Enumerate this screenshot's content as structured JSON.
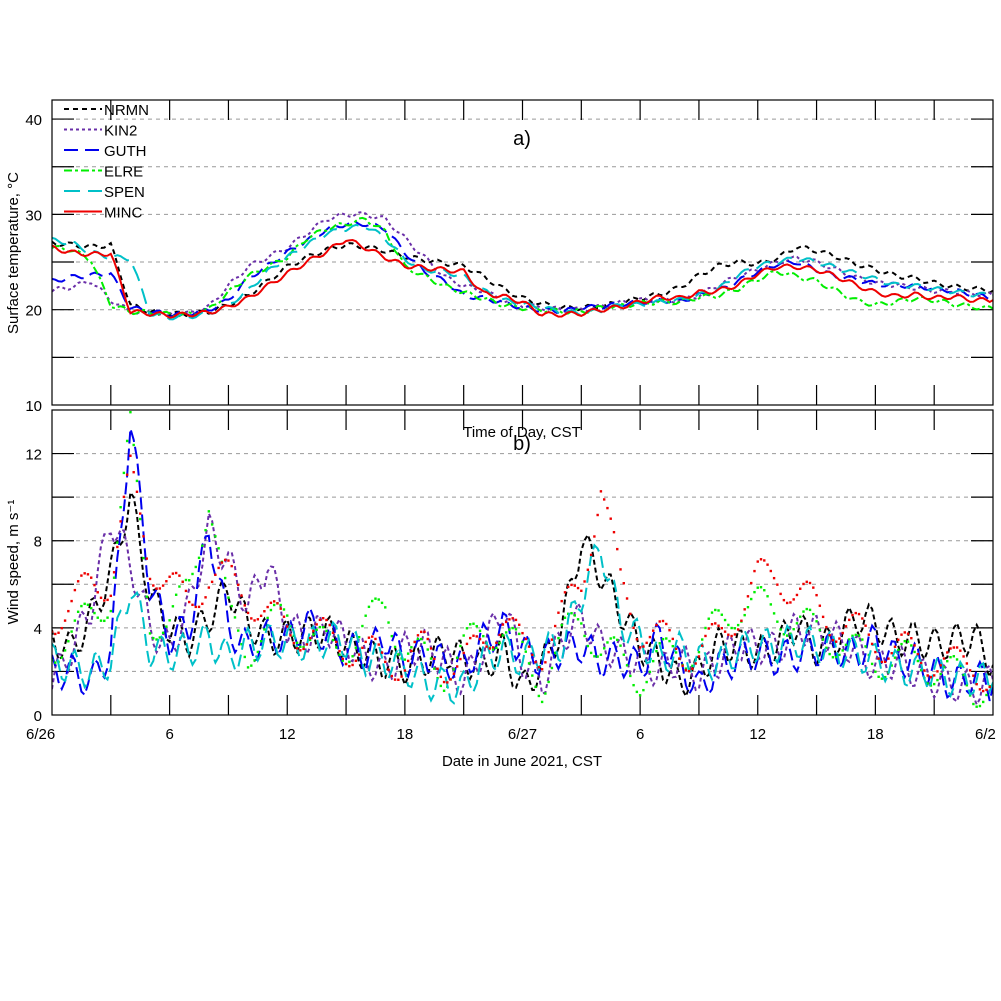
{
  "chart_data": [
    {
      "type": "line",
      "panel_label": "a)",
      "ylabel": "Surface temperature, °C",
      "ylim": [
        10,
        42
      ],
      "yticks": [
        10,
        20,
        30,
        40
      ],
      "ygrid": [
        15,
        20,
        25,
        30,
        35,
        40
      ],
      "xlabel": "Time of Day, CST",
      "xlim_hours": [
        0,
        48
      ],
      "legend": "top-left",
      "x_hours": [
        0,
        1,
        2,
        3,
        4,
        5,
        6,
        7,
        8,
        9,
        10,
        11,
        12,
        13,
        14,
        15,
        16,
        17,
        18,
        19,
        20,
        21,
        22,
        23,
        24,
        25,
        26,
        27,
        28,
        29,
        30,
        31,
        32,
        33,
        34,
        35,
        36,
        37,
        38,
        39,
        40,
        41,
        42,
        43,
        44,
        45,
        46,
        47,
        48
      ],
      "series": [
        {
          "name": "NRMN",
          "color": "#000000",
          "dash": "5,4",
          "values": [
            27,
            26.8,
            26.6,
            26.8,
            20.5,
            19.8,
            19.6,
            19.5,
            19.8,
            20.5,
            21.5,
            23,
            24.5,
            25.5,
            26.3,
            26.8,
            26.6,
            26.2,
            25.6,
            25.2,
            24.9,
            24.6,
            23.5,
            22.2,
            21.2,
            20.6,
            20.2,
            20.2,
            20.4,
            20.7,
            21.2,
            21.6,
            22.3,
            23.6,
            24.6,
            25,
            24.8,
            25.4,
            26.6,
            26.2,
            25.6,
            24.8,
            24.2,
            23.6,
            23.3,
            22.8,
            22.4,
            22.2,
            22
          ]
        },
        {
          "name": "KIN2",
          "color": "#6a2fa8",
          "dash": "3,3",
          "values": [
            22,
            22.4,
            23,
            21,
            19.8,
            19.7,
            19.5,
            19.6,
            20.3,
            22.5,
            24.5,
            25.5,
            26.5,
            28,
            29.5,
            30,
            30,
            29.5,
            27.5,
            25.5,
            23.5,
            22.5,
            22,
            21,
            20.5,
            20.2,
            20,
            20,
            20.3,
            20.7,
            21,
            21,
            21,
            21.5,
            22.6,
            23.5,
            24.2,
            25,
            25.4,
            25,
            24.2,
            23.4,
            22.8,
            22.6,
            22.3,
            22,
            21.9,
            21.7,
            21.5
          ]
        },
        {
          "name": "GUTH",
          "color": "#0000ee",
          "dash": "14,7",
          "values": [
            23,
            23.4,
            23.6,
            23.8,
            20.2,
            19.8,
            19.5,
            19.6,
            20,
            21,
            23.3,
            24.6,
            26,
            27.2,
            28.4,
            29,
            29,
            28.5,
            26,
            24,
            23,
            21.5,
            21.2,
            20.8,
            20.2,
            20,
            19.8,
            20.2,
            20.3,
            20.6,
            20.8,
            21,
            20.9,
            21.5,
            22,
            23,
            24,
            24.8,
            25,
            24.2,
            23.5,
            23.2,
            22.7,
            22.6,
            22.5,
            22.2,
            22,
            21.6,
            21.2
          ]
        },
        {
          "name": "ELRE",
          "color": "#00ee00",
          "dash": "8,3,3,3",
          "values": [
            26.5,
            26.3,
            25.2,
            20.5,
            19.8,
            19.7,
            19.5,
            19.5,
            20,
            21.8,
            23.5,
            24.5,
            25.5,
            27.5,
            28.5,
            29,
            29.5,
            28.2,
            24.5,
            23.5,
            22.5,
            21.8,
            21.2,
            20.5,
            20.2,
            20,
            19.8,
            19.8,
            20.2,
            20.4,
            20.7,
            20.8,
            20.8,
            21.3,
            21.5,
            22.2,
            23.2,
            24,
            23.5,
            23,
            22,
            21,
            20.5,
            20.8,
            21.2,
            21,
            20.6,
            20.3,
            20.1
          ]
        },
        {
          "name": "SPEN",
          "color": "#00c0c8",
          "dash": "16,8",
          "values": [
            27.3,
            27,
            26,
            25.5,
            25.4,
            19.6,
            19.2,
            19.3,
            19.6,
            20.5,
            22,
            24,
            25.5,
            26.8,
            28,
            28.5,
            28.8,
            27.5,
            25.3,
            24.2,
            24,
            23.5,
            22,
            21,
            20.6,
            20.2,
            19.8,
            19.6,
            19.9,
            20.5,
            20.5,
            20.8,
            21,
            21.5,
            22.2,
            23.6,
            24.6,
            25,
            25.4,
            25,
            24.4,
            23.8,
            23.2,
            22.6,
            22.5,
            22.2,
            21.9,
            21.6,
            21.5
          ]
        },
        {
          "name": "MINC",
          "color": "#ee0000",
          "dash": "",
          "values": [
            26.5,
            26,
            25.8,
            25.9,
            19.8,
            19.6,
            19.4,
            19.5,
            19.7,
            20.3,
            21.2,
            22.5,
            23.8,
            25,
            26.1,
            27.4,
            26.5,
            25.5,
            24.6,
            24.4,
            24.2,
            24,
            21.7,
            21.4,
            20.8,
            19.5,
            19.5,
            19.6,
            20,
            20.3,
            20.8,
            21.3,
            21.2,
            21.8,
            22,
            22.6,
            23.8,
            24.5,
            24.5,
            24.2,
            23.5,
            22.6,
            21.8,
            21.4,
            21.6,
            21.2,
            21.4,
            21,
            21
          ]
        }
      ]
    },
    {
      "type": "line",
      "panel_label": "b)",
      "ylabel": "Wind speed, m s⁻¹",
      "ylim": [
        0,
        14
      ],
      "yticks": [
        0,
        4,
        8,
        12
      ],
      "ygrid": [
        2,
        4,
        6,
        8,
        10,
        12
      ],
      "xlabel": "Date in June 2021, CST",
      "xlim_hours": [
        0,
        48
      ],
      "xtick_hours": [
        0,
        6,
        12,
        18,
        24,
        30,
        36,
        42,
        48
      ],
      "xtick_labels": [
        "6/26",
        "6",
        "12",
        "18",
        "6/27",
        "6",
        "12",
        "18",
        "6/2"
      ],
      "x_hours": [
        0,
        1,
        2,
        3,
        4,
        5,
        6,
        7,
        8,
        9,
        10,
        11,
        12,
        13,
        14,
        15,
        16,
        17,
        18,
        19,
        20,
        21,
        22,
        23,
        24,
        25,
        26,
        27,
        28,
        29,
        30,
        31,
        32,
        33,
        34,
        35,
        36,
        37,
        38,
        39,
        40,
        41,
        42,
        43,
        44,
        45,
        46,
        47,
        48
      ],
      "series": [
        {
          "name": "NRMN",
          "color": "#000000",
          "style": "dash",
          "values": [
            3.5,
            3,
            4.5,
            6.5,
            10,
            5.5,
            4,
            3.5,
            4.5,
            5.8,
            4.2,
            3.5,
            3.6,
            3.8,
            3.8,
            3.2,
            2.8,
            2.4,
            2.2,
            2.5,
            3,
            2.6,
            2.2,
            3,
            1.2,
            2.3,
            4,
            8,
            6.5,
            4.8,
            3.2,
            2.5,
            1.5,
            2,
            3.2,
            3.2,
            2.8,
            3.2,
            4.2,
            3,
            3.5,
            4.5,
            4.2,
            3.5,
            3.5,
            3.2,
            3.4,
            3.6,
            2.3
          ]
        },
        {
          "name": "KIN2",
          "color": "#6a2fa8",
          "style": "dot",
          "values": [
            1.5,
            3,
            5,
            9,
            7,
            4,
            3,
            5,
            8.5,
            7,
            5,
            7,
            4,
            3.6,
            4,
            3.4,
            2.6,
            2,
            3,
            3.2,
            2.5,
            1.5,
            3,
            5,
            2.5,
            1.5,
            3.5,
            4.5,
            3.2,
            2.8,
            2.5,
            2,
            2.6,
            1.8,
            2.5,
            3.2,
            3.2,
            3,
            4,
            3.8,
            3.5,
            3,
            2.2,
            2.5,
            2,
            1.6,
            1.4,
            1.2,
            1.6
          ]
        },
        {
          "name": "GUTH",
          "color": "#0000ee",
          "style": "longdash",
          "values": [
            2,
            2,
            1.5,
            3,
            13.5,
            6,
            3.5,
            4,
            8.5,
            4,
            3,
            3.6,
            3.5,
            4.2,
            3.6,
            3,
            2.8,
            3.6,
            2.5,
            2.8,
            2.4,
            2.2,
            3.4,
            4,
            3,
            2.5,
            3,
            3.2,
            2.5,
            2.6,
            2.2,
            3.6,
            2.3,
            1.2,
            2.2,
            2.6,
            2.8,
            2.6,
            2.8,
            3,
            3,
            2.8,
            3.4,
            2.6,
            2.5,
            2,
            1.4,
            1.8,
            1.3
          ]
        },
        {
          "name": "ELRE",
          "color": "#00ee00",
          "style": "points",
          "values": [
            3.2,
            3.6,
            4.6,
            5.5,
            13,
            4.5,
            4,
            6,
            10,
            4.5,
            3,
            4,
            4.5,
            3.8,
            3,
            3.2,
            4,
            5,
            3,
            2.5,
            2,
            3,
            3.8,
            4,
            2.6,
            1.5,
            3.4,
            4.5,
            3,
            2.5,
            1.8,
            2.5,
            3,
            3,
            4.2,
            5,
            5,
            4.8,
            4.2,
            3.8,
            3.5,
            2.8,
            2.6,
            2.5,
            2.5,
            2.2,
            1.8,
            1.2,
            1.5
          ]
        },
        {
          "name": "SPEN",
          "color": "#00c0c8",
          "style": "longdash",
          "values": [
            2.5,
            2.2,
            2,
            2.5,
            6,
            3,
            2.8,
            3,
            3.5,
            2.6,
            3.2,
            3.4,
            3.4,
            3.2,
            3.5,
            3.4,
            2.6,
            2.5,
            2.2,
            1.5,
            1.4,
            1.2,
            2.5,
            3,
            2.5,
            3,
            3.2,
            5.5,
            7.8,
            4.2,
            3.5,
            2.5,
            3,
            2.5,
            2.4,
            3,
            3.2,
            3.2,
            3.4,
            3.2,
            3,
            2.8,
            2.5,
            2.2,
            2,
            2,
            1.6,
            1.7,
            1.5
          ]
        },
        {
          "name": "MINC",
          "color": "#ee0000",
          "style": "points",
          "values": [
            4.5,
            5,
            6,
            6.2,
            11,
            7,
            6,
            5,
            6.5,
            6.2,
            5.5,
            4.5,
            4,
            3.8,
            3.5,
            3.2,
            2.8,
            2.5,
            2.5,
            3,
            2.4,
            2.2,
            3.5,
            4.5,
            3,
            3,
            4.5,
            6,
            10.5,
            6,
            4,
            3.5,
            3,
            2.8,
            3.5,
            4.8,
            6.2,
            6.5,
            5.5,
            5,
            4.2,
            3.8,
            3.5,
            3,
            2.8,
            2.6,
            2.2,
            2.5,
            1.2
          ]
        }
      ]
    }
  ]
}
